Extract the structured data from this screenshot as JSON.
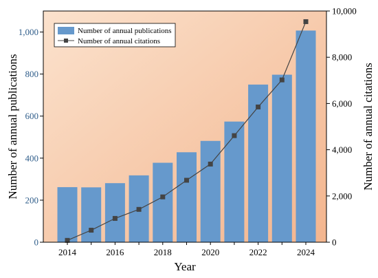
{
  "chart_data": {
    "type": "bar+line",
    "categories": [
      "2014",
      "2015",
      "2016",
      "2017",
      "2018",
      "2019",
      "2020",
      "2021",
      "2022",
      "2023",
      "2024"
    ],
    "x_tick_labels": [
      "2014",
      "2016",
      "2018",
      "2020",
      "2022",
      "2024"
    ],
    "series": [
      {
        "name": "Number of annual publications",
        "type": "bar",
        "axis": "left",
        "color": "#6699cc",
        "values": [
          262,
          261,
          281,
          318,
          378,
          428,
          482,
          574,
          750,
          797,
          1007
        ]
      },
      {
        "name": "Number of annual citations",
        "type": "line",
        "axis": "right",
        "color": "#444444",
        "marker": "square",
        "values": [
          80,
          520,
          1030,
          1420,
          1960,
          2680,
          3380,
          4610,
          5850,
          7020,
          9540
        ]
      }
    ],
    "xlabel": "Year",
    "ylabel_left": "Number of annual publications",
    "ylabel_right": "Number of annual citations",
    "ylim_left": [
      0,
      1100
    ],
    "yticks_left": [
      0,
      200,
      400,
      600,
      800,
      1000
    ],
    "ytick_labels_left": [
      "0",
      "200",
      "400",
      "600",
      "800",
      "1,000"
    ],
    "ylim_right": [
      0,
      10000
    ],
    "yticks_right": [
      0,
      2000,
      4000,
      6000,
      8000,
      10000
    ],
    "ytick_labels_right": [
      "0",
      "2,000",
      "4,000",
      "6,000",
      "8,000",
      "10,000"
    ],
    "legend_position": "top-left",
    "background_gradient": [
      "#f6cfb0",
      "#fbe6d6"
    ],
    "grid": false
  }
}
